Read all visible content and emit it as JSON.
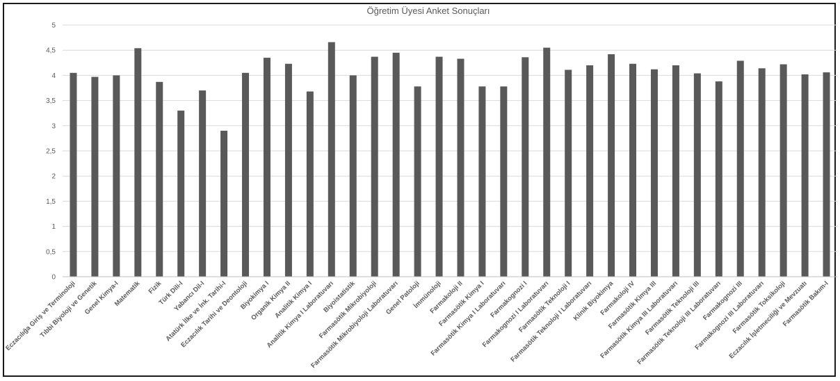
{
  "chart_data": {
    "type": "bar",
    "title": "Öğretim Üyesi Anket Sonuçları",
    "xlabel": "",
    "ylabel": "",
    "ylim": [
      0,
      5
    ],
    "yticks": [
      "0",
      "0,5",
      "1",
      "1,5",
      "2",
      "2,5",
      "3",
      "3,5",
      "4",
      "4,5",
      "5"
    ],
    "grid": true,
    "legend": "none",
    "bar_color": "#595959",
    "categories": [
      "Eczacılığa Giriş ve Terminoloji",
      "Tıbbi Biyoloji ve Genetik",
      "Genel Kimya-I",
      "Matematik",
      "Fizik",
      "Türk Dili-I",
      "Yabancı Dil-I",
      "Atatürk İlke ve İnk. Tarihi-I",
      "Eczacılık Tarihi ve Deontoloji",
      "Biyokimya I",
      "Organik Kimya II",
      "Analitik Kimya I",
      "Analitik Kimya I Laboratuvarı",
      "Biyoistatistik",
      "Farmasötik Mikrobiyoloji",
      "Farmasötik Mikrobiyoloji Laboratuvarı",
      "Genel Patoloji",
      "İmmünoloji",
      "Farmakoloji II",
      "Farmasötik Kimya I",
      "Farmasötik Kimya I Laboratuvarı",
      "Farmakognozi I",
      "Farmakognozi I Laboratuvarı",
      "Farmasötik Teknoloji I",
      "Farmasötik Teknoloji I Laboratuvarı",
      "Klinik Biyokimya",
      "Farmakoloji IV",
      "Farmasötik Kimya III",
      "Farmasötik Kimya III Laboratuvarı",
      "Farmasötik Teknoloji III",
      "Farmasötik Teknoloji III Laboratuvarı",
      "Farmakognozi III",
      "Farmakognozi III Laboratuvarı",
      "Farmasötik Toksikoloji",
      "Eczacılık İşletmeciliği ve Mevzuatı",
      "Farmasötik Bakım-I"
    ],
    "values": [
      4.05,
      3.97,
      4.0,
      4.54,
      3.87,
      3.3,
      3.7,
      2.9,
      4.05,
      4.35,
      4.23,
      3.68,
      4.66,
      4.0,
      4.37,
      4.45,
      3.78,
      4.37,
      4.33,
      3.78,
      3.78,
      4.36,
      4.55,
      4.11,
      4.2,
      4.42,
      4.23,
      4.12,
      4.2,
      4.04,
      3.88,
      4.29,
      4.14,
      4.22,
      4.02,
      4.06
    ]
  }
}
